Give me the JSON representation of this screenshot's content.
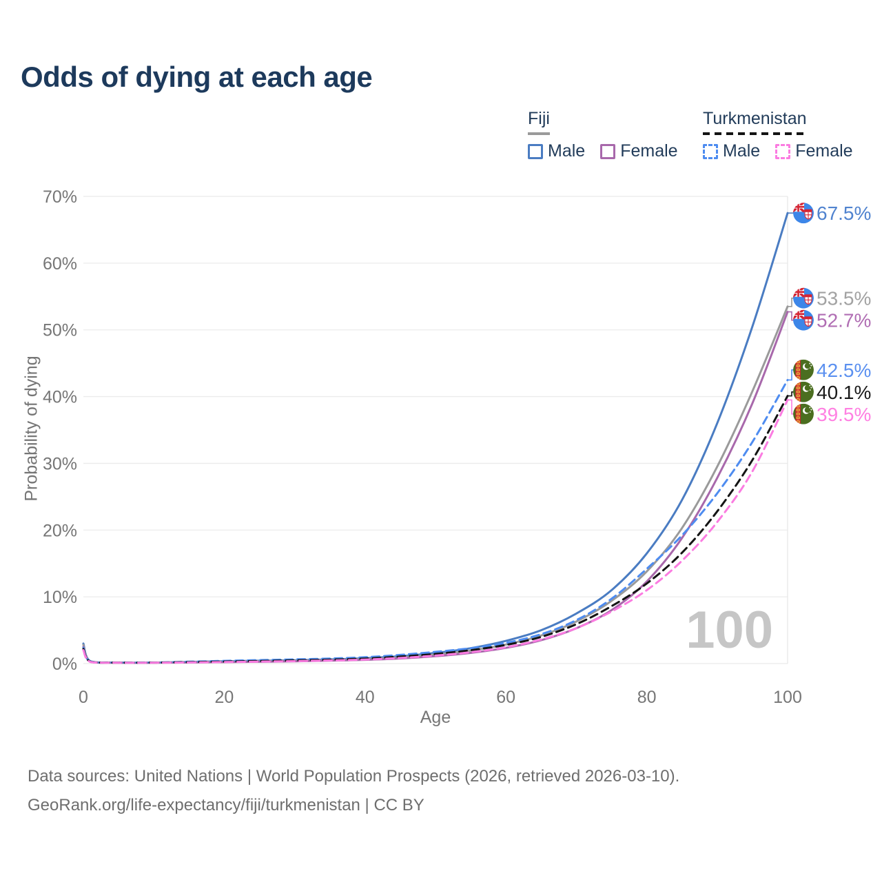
{
  "title": "Odds of dying at each age",
  "legend": {
    "groups": [
      {
        "label": "Fiji",
        "underline_style": "solid",
        "underline_color": "#9a9a9a",
        "items": [
          {
            "label": "Male",
            "color": "#4a7cc2",
            "dashed": false
          },
          {
            "label": "Female",
            "color": "#a868ab",
            "dashed": false
          }
        ]
      },
      {
        "label": "Turkmenistan",
        "underline_style": "dashed",
        "underline_color": "#141414",
        "items": [
          {
            "label": "Male",
            "color": "#4e8cf0",
            "dashed": true
          },
          {
            "label": "Female",
            "color": "#fb7ce1",
            "dashed": true
          }
        ]
      }
    ]
  },
  "chart_data": {
    "type": "line",
    "x_label": "Age",
    "y_label": "Probability of dying",
    "xlim": [
      0,
      100
    ],
    "ylim": [
      0,
      70
    ],
    "x_ticks": [
      0,
      20,
      40,
      60,
      80,
      100
    ],
    "y_ticks": [
      0,
      10,
      20,
      30,
      40,
      50,
      60,
      70
    ],
    "y_tick_suffix": "%",
    "grid": true,
    "watermark": "100",
    "ages": [
      0,
      1,
      5,
      10,
      15,
      20,
      25,
      30,
      35,
      40,
      45,
      50,
      55,
      60,
      65,
      70,
      75,
      80,
      85,
      90,
      95,
      100
    ],
    "series": [
      {
        "name": "Fiji Male",
        "country": "Fiji",
        "sex": "Male",
        "flag": "fiji",
        "color": "#4a7cc2",
        "dashed": false,
        "end_label": "67.5%",
        "label_color": "#5083cf",
        "values": [
          3.0,
          0.35,
          0.15,
          0.15,
          0.25,
          0.35,
          0.42,
          0.5,
          0.62,
          0.8,
          1.1,
          1.6,
          2.3,
          3.4,
          5.0,
          7.5,
          11.0,
          16.5,
          24.5,
          36.0,
          50.5,
          67.5
        ]
      },
      {
        "name": "Fiji Both sexes",
        "country": "Fiji",
        "sex": "Both sexes",
        "flag": "fiji",
        "color": "#9a9a9a",
        "dashed": false,
        "end_label": "53.5%",
        "label_color": "#a2a2a2",
        "values": [
          2.8,
          0.3,
          0.13,
          0.13,
          0.21,
          0.29,
          0.35,
          0.42,
          0.52,
          0.67,
          0.92,
          1.35,
          1.95,
          2.85,
          4.2,
          6.3,
          9.4,
          13.8,
          20.3,
          29.5,
          40.8,
          53.5
        ]
      },
      {
        "name": "Fiji Female",
        "country": "Fiji",
        "sex": "Female",
        "flag": "fiji",
        "color": "#a868ab",
        "dashed": false,
        "end_label": "52.7%",
        "label_color": "#b06db3",
        "values": [
          2.5,
          0.27,
          0.12,
          0.12,
          0.17,
          0.22,
          0.27,
          0.34,
          0.43,
          0.56,
          0.76,
          1.1,
          1.6,
          2.35,
          3.5,
          5.3,
          8.0,
          12.3,
          18.8,
          27.8,
          39.0,
          52.7
        ]
      },
      {
        "name": "Turkmenistan Male",
        "country": "Turkmenistan",
        "sex": "Male",
        "flag": "turkmenistan",
        "color": "#4e8cf0",
        "dashed": true,
        "end_label": "42.5%",
        "label_color": "#5b90f0",
        "values": [
          2.4,
          0.32,
          0.16,
          0.16,
          0.28,
          0.4,
          0.52,
          0.63,
          0.75,
          0.95,
          1.3,
          1.75,
          2.3,
          3.1,
          4.4,
          6.5,
          9.7,
          14.2,
          19.2,
          25.5,
          33.2,
          42.5
        ]
      },
      {
        "name": "Turkmenistan Both sexes",
        "country": "Turkmenistan",
        "sex": "Both sexes",
        "flag": "turkmenistan",
        "color": "#141414",
        "dashed": true,
        "end_label": "40.1%",
        "label_color": "#1a1a1a",
        "values": [
          2.2,
          0.28,
          0.14,
          0.14,
          0.22,
          0.3,
          0.38,
          0.47,
          0.58,
          0.75,
          1.05,
          1.45,
          2.0,
          2.8,
          4.0,
          5.9,
          8.6,
          12.0,
          16.6,
          22.8,
          30.5,
          40.1
        ]
      },
      {
        "name": "Turkmenistan Female",
        "country": "Turkmenistan",
        "sex": "Female",
        "flag": "turkmenistan",
        "color": "#fb7ce1",
        "dashed": true,
        "end_label": "39.5%",
        "label_color": "#ff80e2",
        "values": [
          2.0,
          0.25,
          0.12,
          0.12,
          0.17,
          0.23,
          0.29,
          0.36,
          0.46,
          0.6,
          0.84,
          1.2,
          1.7,
          2.45,
          3.6,
          5.3,
          7.8,
          11.0,
          15.4,
          21.2,
          28.8,
          39.5
        ]
      }
    ]
  },
  "footer": {
    "line1": "Data sources: United Nations | World Population Prospects (2026, retrieved 2026-03-10).",
    "line2": "GeoRank.org/life-expectancy/fiji/turkmenistan | CC BY"
  }
}
